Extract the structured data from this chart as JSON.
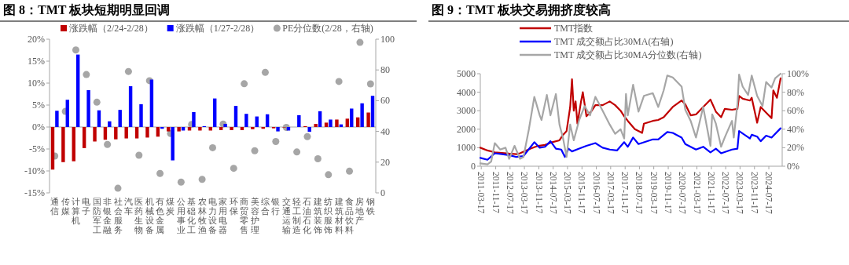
{
  "chart_data": [
    {
      "type": "bar",
      "title": "图 8：TMT 板块短期明显回调",
      "legend": "top",
      "categories": [
        "通信",
        "传媒",
        "计算机",
        "电子",
        "国防军工",
        "非银金融",
        "社会服务",
        "汽车",
        "医药生物",
        "机械设备",
        "有色金属",
        "煤炭",
        "公用事业",
        "基础化工",
        "农林牧渔",
        "电力设备",
        "家用电器",
        "环保",
        "商贸零售",
        "美容护理",
        "综合",
        "银行",
        "交通运输",
        "轻工制造",
        "石油石化",
        "建筑装饰",
        "纺织服饰",
        "建筑材料",
        "食品饮料",
        "房地产",
        "钢铁"
      ],
      "ylim": [
        -15,
        20
      ],
      "yticks": [
        {
          "value": -15,
          "label": "-15%"
        },
        {
          "value": -10,
          "label": "-10%"
        },
        {
          "value": -5,
          "label": "-5%"
        },
        {
          "value": 0,
          "label": "0%"
        },
        {
          "value": 5,
          "label": "5%"
        },
        {
          "value": 10,
          "label": "10%"
        },
        {
          "value": 15,
          "label": "15%"
        },
        {
          "value": 20,
          "label": "20%"
        }
      ],
      "y2lim": [
        0,
        100
      ],
      "y2ticks": [
        0,
        20,
        40,
        60,
        80,
        100
      ],
      "series": [
        {
          "name": "涨跌幅（2/24-2/28）",
          "type": "bar",
          "color": "#c00000",
          "values": [
            -9.7,
            -8.0,
            -7.8,
            -4.8,
            -3.3,
            -2.9,
            -2.8,
            -2.6,
            -2.6,
            -2.4,
            -2.2,
            -1.0,
            -1.0,
            -0.8,
            -0.8,
            -0.8,
            -0.7,
            -0.7,
            -0.7,
            -0.5,
            -0.4,
            -0.3,
            -0.1,
            0.0,
            0.2,
            0.7,
            1.0,
            1.7,
            1.9,
            2.2,
            3.3
          ]
        },
        {
          "name": "涨跌幅（1/27-2/28）",
          "type": "bar",
          "color": "#0000ff",
          "values": [
            3.7,
            6.2,
            16.5,
            8.4,
            3.8,
            1.3,
            3.9,
            9.3,
            5.2,
            10.8,
            -0.4,
            -7.6,
            -0.8,
            3.4,
            0.2,
            6.5,
            0.7,
            4.8,
            3.0,
            2.4,
            2.9,
            -1.0,
            -0.8,
            2.7,
            -1.1,
            3.6,
            1.7,
            0.6,
            4.2,
            5.4,
            7.1
          ]
        },
        {
          "name": "PE分位数(2/28，右轴)",
          "type": "scatter",
          "axis": "y2",
          "marker": "circle",
          "color": "#a6a6a6",
          "values": [
            24,
            53,
            93,
            77,
            59,
            31.5,
            3,
            79,
            24.5,
            73,
            12.6,
            38.6,
            7,
            44.5,
            8.8,
            29.4,
            44.8,
            16,
            71,
            27.4,
            78.4,
            33.4,
            42.6,
            26.6,
            36.6,
            22.2,
            11.8,
            72.5,
            14.1,
            97.9,
            70.9
          ]
        }
      ]
    },
    {
      "type": "line",
      "title": "图 9：TMT 板块交易拥挤度较高",
      "legend": "top left",
      "line_style": "solid",
      "xlim": [
        "2011-03-01",
        "2025-02-28"
      ],
      "xticks": [
        "2011-03-17",
        "2011-11-17",
        "2012-07-17",
        "2013-03-17",
        "2013-11-17",
        "2014-07-17",
        "2015-03-17",
        "2015-11-17",
        "2016-07-17",
        "2017-03-17",
        "2017-11-17",
        "2018-07-17",
        "2019-03-17",
        "2019-11-17",
        "2020-07-17",
        "2021-03-17",
        "2021-11-17",
        "2022-07-17",
        "2023-03-17",
        "2023-11-17",
        "2024-07-17"
      ],
      "ylim": [
        0,
        5000
      ],
      "yticks": [
        0,
        1000,
        2000,
        3000,
        4000,
        5000
      ],
      "y2lim": [
        0,
        100
      ],
      "y2ticks": [
        {
          "value": 0,
          "label": "0%"
        },
        {
          "value": 20,
          "label": "20%"
        },
        {
          "value": 40,
          "label": "40%"
        },
        {
          "value": 60,
          "label": "60%"
        },
        {
          "value": 80,
          "label": "80%"
        },
        {
          "value": 100,
          "label": "100%"
        }
      ],
      "series": [
        {
          "name": "TMT指数",
          "color": "#c00000",
          "x": [
            "2011-03",
            "2011-07",
            "2011-11",
            "2012-03",
            "2012-07",
            "2012-11",
            "2013-01",
            "2013-03",
            "2013-07",
            "2013-11",
            "2014-03",
            "2014-07",
            "2014-11",
            "2015-01",
            "2015-03",
            "2015-05",
            "2015-06",
            "2015-07",
            "2015-08",
            "2015-09",
            "2015-11",
            "2015-12",
            "2016-02",
            "2016-05",
            "2016-07",
            "2016-11",
            "2017-03",
            "2017-06",
            "2017-09",
            "2017-11",
            "2018-01",
            "2018-05",
            "2018-09",
            "2018-10",
            "2019-03",
            "2019-06",
            "2019-09",
            "2020-02",
            "2020-07",
            "2020-09",
            "2020-12",
            "2021-03",
            "2021-07",
            "2021-11",
            "2022-02",
            "2022-05",
            "2022-07",
            "2022-11",
            "2023-02",
            "2023-03",
            "2023-05",
            "2023-09",
            "2023-10",
            "2024-01",
            "2024-03",
            "2024-07",
            "2024-09",
            "2024-10",
            "2024-12",
            "2025-02"
          ],
          "values": [
            1000,
            850,
            750,
            720,
            680,
            650,
            700,
            780,
            950,
            1100,
            1150,
            1300,
            1400,
            1700,
            1900,
            3200,
            4700,
            3000,
            3500,
            2300,
            3500,
            4000,
            2700,
            3000,
            3300,
            3300,
            3500,
            3300,
            3000,
            2700,
            2450,
            2000,
            1800,
            2300,
            2450,
            2500,
            2650,
            3200,
            3550,
            3350,
            2750,
            2800,
            3200,
            3600,
            2950,
            2650,
            3100,
            3050,
            3100,
            3800,
            3650,
            3550,
            3700,
            2350,
            3200,
            2800,
            2600,
            4100,
            3700,
            4750
          ]
        },
        {
          "name": "TMT 成交额占比30MA(右轴)",
          "axis": "y2",
          "color": "#0000ff",
          "x": [
            "2011-03",
            "2011-07",
            "2011-11",
            "2012-03",
            "2012-07",
            "2012-11",
            "2013-03",
            "2013-09",
            "2013-12",
            "2014-03",
            "2014-06",
            "2014-09",
            "2014-12",
            "2015-02",
            "2015-04",
            "2015-06",
            "2015-10",
            "2016-02",
            "2016-07",
            "2016-11",
            "2017-03",
            "2017-07",
            "2017-11",
            "2018-01",
            "2018-04",
            "2018-07",
            "2019-03",
            "2019-06",
            "2019-11",
            "2020-02",
            "2020-07",
            "2020-09",
            "2021-03",
            "2021-07",
            "2021-11",
            "2022-02",
            "2022-05",
            "2022-11",
            "2023-02",
            "2023-03",
            "2023-09",
            "2023-10",
            "2024-01",
            "2024-03",
            "2024-06",
            "2024-09",
            "2025-02"
          ],
          "values": [
            9,
            7,
            14,
            13,
            12,
            10,
            11,
            26,
            20,
            21,
            27,
            19,
            18,
            10,
            19,
            16,
            19,
            22,
            25,
            20,
            18,
            17,
            26,
            21,
            31,
            24,
            29,
            29,
            37,
            36,
            31,
            24,
            18,
            21,
            15,
            19,
            14,
            18,
            19,
            38,
            30,
            34,
            32,
            27,
            33,
            31,
            41
          ]
        },
        {
          "name": "TMT 成交额占比30MA分位数(右轴)",
          "axis": "y2",
          "color": "#a6a6a6",
          "x": [
            "2011-03",
            "2011-07",
            "2011-09",
            "2011-11",
            "2012-02",
            "2012-05",
            "2012-07",
            "2012-10",
            "2013-01",
            "2013-03",
            "2013-06",
            "2013-09",
            "2013-12",
            "2014-01",
            "2014-04",
            "2014-06",
            "2014-09",
            "2014-11",
            "2015-01",
            "2015-03",
            "2015-05",
            "2015-07",
            "2015-10",
            "2016-01",
            "2016-04",
            "2016-07",
            "2016-11",
            "2017-03",
            "2017-06",
            "2017-09",
            "2017-11",
            "2017-12",
            "2018-01",
            "2018-04",
            "2018-07",
            "2018-10",
            "2019-03",
            "2019-06",
            "2019-09",
            "2019-11",
            "2020-02",
            "2020-07",
            "2020-09",
            "2020-12",
            "2021-03",
            "2021-07",
            "2021-11",
            "2021-12",
            "2022-02",
            "2022-05",
            "2022-07",
            "2022-11",
            "2022-12",
            "2023-02",
            "2023-03",
            "2023-05",
            "2023-08",
            "2023-10",
            "2024-01",
            "2024-04",
            "2024-06",
            "2024-09",
            "2024-11",
            "2025-02"
          ],
          "values": [
            3,
            2,
            5,
            25,
            18,
            20,
            8,
            22,
            8,
            10,
            40,
            75,
            55,
            50,
            77,
            55,
            78,
            45,
            30,
            10,
            45,
            28,
            50,
            65,
            55,
            75,
            60,
            45,
            35,
            40,
            30,
            78,
            55,
            88,
            59,
            76,
            79,
            64,
            82,
            98,
            96,
            86,
            61,
            49,
            31,
            64,
            22,
            56,
            46,
            21,
            31,
            49,
            31,
            67,
            99,
            86,
            77,
            98,
            76,
            65,
            91,
            85,
            95,
            100
          ]
        }
      ]
    }
  ]
}
